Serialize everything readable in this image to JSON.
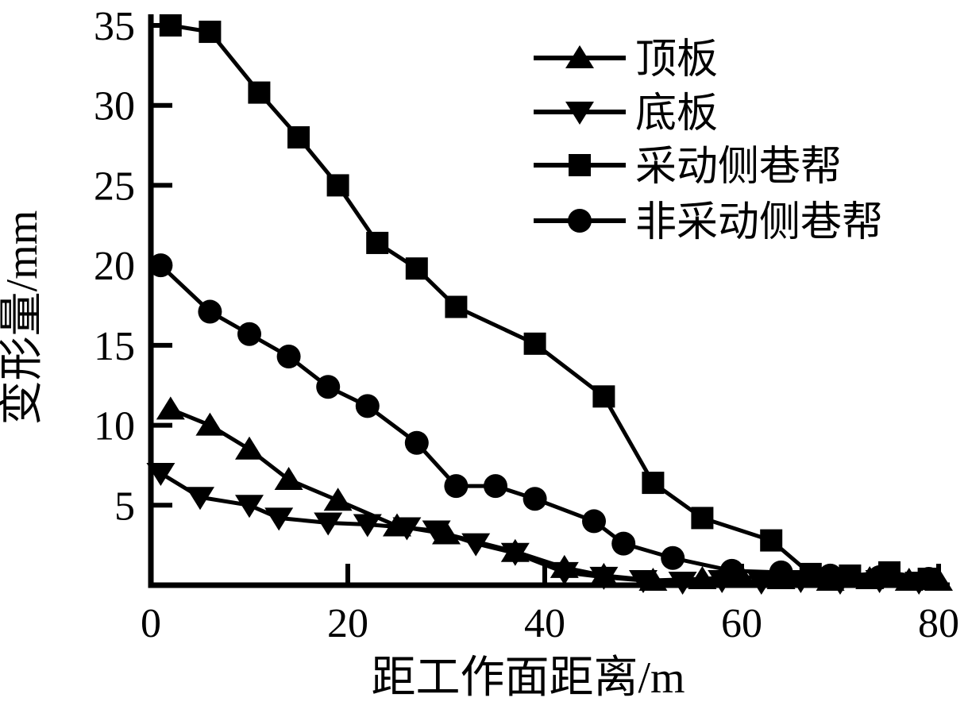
{
  "figure": {
    "background_color": "#ffffff",
    "line_color": "#000000"
  },
  "chart_data": {
    "type": "line",
    "title": "",
    "xlabel": "距工作面距离/m",
    "ylabel": "变形量/mm",
    "xlim": [
      0,
      80
    ],
    "ylim": [
      0,
      35
    ],
    "x_ticks": [
      0,
      20,
      40,
      60,
      80
    ],
    "y_ticks": [
      5,
      10,
      15,
      20,
      25,
      30,
      35
    ],
    "grid": false,
    "legend_position": "top-right-inside",
    "series": [
      {
        "id": "roof",
        "name": "顶板",
        "marker": "triangle-up",
        "color": "#000000",
        "points": [
          [
            2,
            11
          ],
          [
            6,
            10
          ],
          [
            10,
            8.5
          ],
          [
            14,
            6.6
          ],
          [
            19,
            5.3
          ],
          [
            25,
            3.7
          ],
          [
            30,
            3.2
          ],
          [
            37,
            2.1
          ],
          [
            42,
            1.1
          ],
          [
            46,
            0.6
          ],
          [
            51,
            0.3
          ],
          [
            56,
            0.4
          ],
          [
            60,
            0.5
          ],
          [
            64,
            0.4
          ],
          [
            69,
            0.3
          ],
          [
            73,
            0.4
          ],
          [
            77,
            0.3
          ],
          [
            80,
            0.3
          ]
        ]
      },
      {
        "id": "floor",
        "name": "底板",
        "marker": "triangle-down",
        "color": "#000000",
        "points": [
          [
            1,
            7
          ],
          [
            5,
            5.5
          ],
          [
            10,
            5.0
          ],
          [
            13,
            4.2
          ],
          [
            18,
            3.9
          ],
          [
            22,
            3.8
          ],
          [
            26,
            3.6
          ],
          [
            29,
            3.4
          ],
          [
            33,
            2.6
          ],
          [
            37,
            2.0
          ],
          [
            42,
            0.8
          ],
          [
            46,
            0.5
          ],
          [
            50,
            0.3
          ],
          [
            54,
            0.2
          ],
          [
            58,
            0.3
          ],
          [
            62,
            0.2
          ],
          [
            66,
            0.3
          ],
          [
            70,
            0.2
          ],
          [
            74,
            0.3
          ],
          [
            78,
            0.2
          ]
        ]
      },
      {
        "id": "mining-side-wall",
        "name": "采动侧巷帮",
        "marker": "square",
        "color": "#000000",
        "points": [
          [
            2,
            35
          ],
          [
            6,
            34.6
          ],
          [
            11,
            30.8
          ],
          [
            15,
            28
          ],
          [
            19,
            25
          ],
          [
            23,
            21.4
          ],
          [
            27,
            19.8
          ],
          [
            31,
            17.4
          ],
          [
            39,
            15.1
          ],
          [
            46,
            11.8
          ],
          [
            51,
            6.4
          ],
          [
            56,
            4.2
          ],
          [
            63,
            2.8
          ],
          [
            67,
            0.7
          ],
          [
            71,
            0.6
          ],
          [
            75,
            0.8
          ],
          [
            79,
            0.4
          ]
        ]
      },
      {
        "id": "non-mining-side-wall",
        "name": "非采动侧巷帮",
        "marker": "circle",
        "color": "#000000",
        "points": [
          [
            1,
            20
          ],
          [
            6,
            17.1
          ],
          [
            10,
            15.7
          ],
          [
            14,
            14.3
          ],
          [
            18,
            12.4
          ],
          [
            22,
            11.2
          ],
          [
            27,
            8.9
          ],
          [
            31,
            6.2
          ],
          [
            35,
            6.2
          ],
          [
            39,
            5.4
          ],
          [
            45,
            4.0
          ],
          [
            48,
            2.6
          ],
          [
            53,
            1.7
          ],
          [
            59,
            0.9
          ],
          [
            64,
            0.8
          ],
          [
            69,
            0.6
          ],
          [
            74,
            0.5
          ],
          [
            79,
            0.4
          ]
        ]
      }
    ]
  }
}
